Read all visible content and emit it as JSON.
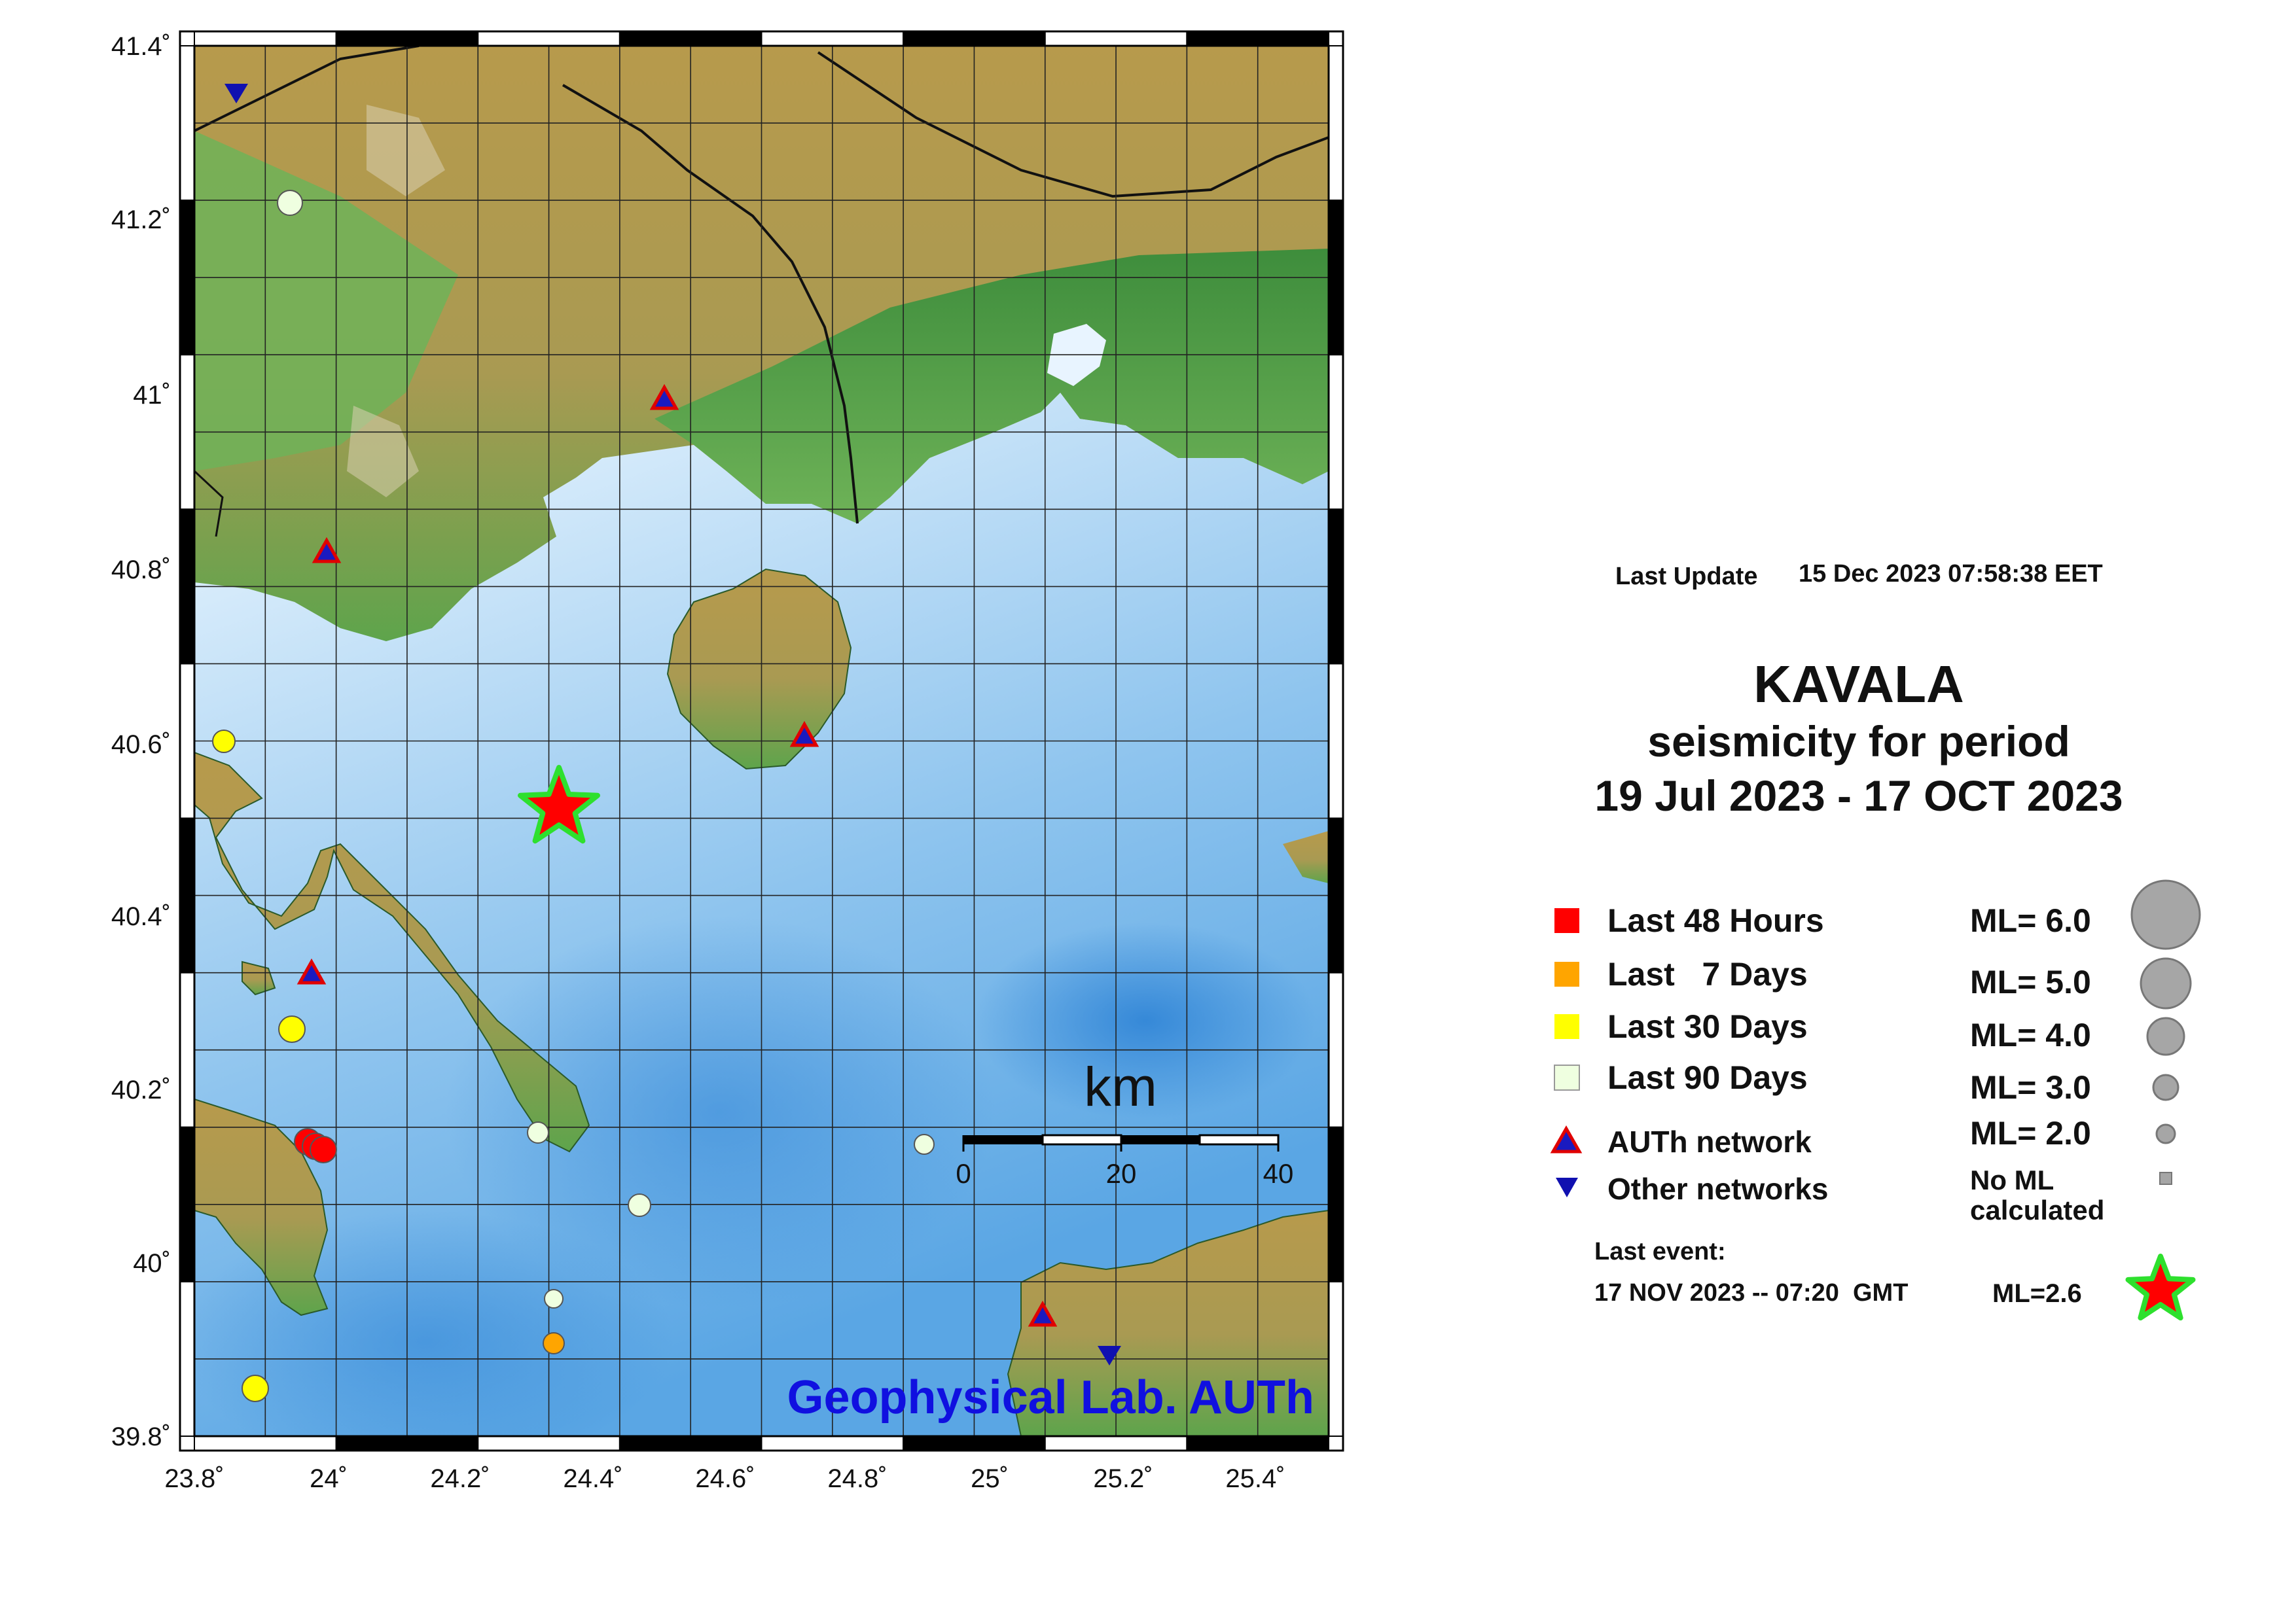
{
  "map": {
    "lat_ticks": [
      "41.4˚",
      "41.2˚",
      "41˚",
      "40.8˚",
      "40.6˚",
      "40.4˚",
      "40.2˚",
      "40˚",
      "39.8˚"
    ],
    "lon_ticks": [
      "23.8˚",
      "24˚",
      "24.2˚",
      "24.4˚",
      "24.6˚",
      "24.8˚",
      "25˚",
      "25.2˚",
      "25.4˚"
    ],
    "credit": "Geophysical Lab. AUTh",
    "scale_bar": {
      "unit": "km",
      "ticks": [
        "0",
        "20",
        "40"
      ]
    },
    "colors": {
      "sea_light": "#dcefff",
      "sea_deep": "#3f95de",
      "lowland": "#4f9c46",
      "upland": "#b79a4c",
      "credit": "#1010e0"
    }
  },
  "info": {
    "last_update_label": "Last Update",
    "last_update_value": "15 Dec 2023 07:58:38 EET",
    "title": "KAVALA",
    "subtitle1": "seismicity for period",
    "subtitle2": "19 Jul 2023 - 17 OCT 2023"
  },
  "legend": {
    "items": [
      {
        "label": "Last 48 Hours",
        "color": "#ff0000"
      },
      {
        "label": "Last   7 Days",
        "color": "#ffa500"
      },
      {
        "label": "Last 30 Days",
        "color": "#ffff00"
      },
      {
        "label": "Last 90 Days",
        "color": "#efffe0"
      }
    ],
    "auth_label": "AUTh network",
    "other_label": "Other networks",
    "magnitudes": [
      "ML= 6.0",
      "ML= 5.0",
      "ML= 4.0",
      "ML= 3.0",
      "ML= 2.0"
    ],
    "no_ml": "No ML",
    "no_ml2": "calculated",
    "last_event_label": "Last event:",
    "last_event_time": "17 NOV 2023 -- 07:20  GMT",
    "last_event_ml": "ML=2.6"
  }
}
